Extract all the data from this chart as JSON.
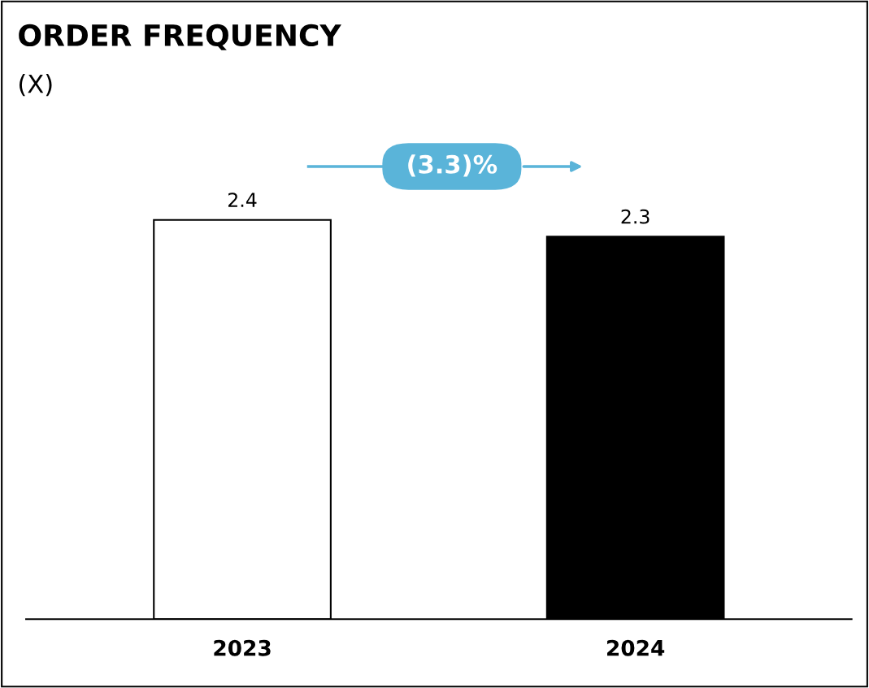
{
  "chart_data": {
    "type": "bar",
    "title": "ORDER FREQUENCY",
    "subtitle": "(X)",
    "categories": [
      "2023",
      "2024"
    ],
    "values": [
      2.4,
      2.3
    ],
    "colors": [
      "#ffffff",
      "#000000"
    ],
    "data_labels": true,
    "annotations": [
      "(3.3)%"
    ],
    "grid": false,
    "legend": false
  }
}
